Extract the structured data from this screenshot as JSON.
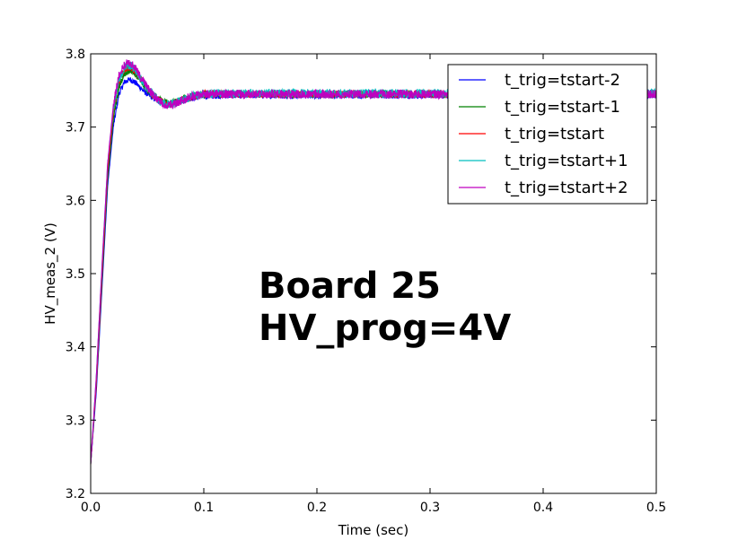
{
  "chart_data": {
    "type": "line",
    "title": "",
    "xlabel": "Time (sec)",
    "ylabel": "HV_meas_2 (V)",
    "xlim": [
      0.0,
      0.5
    ],
    "ylim": [
      3.2,
      3.8
    ],
    "xticks": [
      "0.0",
      "0.1",
      "0.2",
      "0.3",
      "0.4",
      "0.5"
    ],
    "yticks": [
      "3.2",
      "3.3",
      "3.4",
      "3.5",
      "3.6",
      "3.7",
      "3.8"
    ],
    "grid": false,
    "legend_position": "top-right",
    "annotation": [
      "Board 25",
      "HV_prog=4V"
    ],
    "series": [
      {
        "name": "t_trig=tstart-2",
        "color": "#0000ff",
        "noise": 0.004,
        "x": [
          0,
          0.005,
          0.01,
          0.015,
          0.02,
          0.025,
          0.03,
          0.035,
          0.04,
          0.045,
          0.05,
          0.055,
          0.06,
          0.065,
          0.07,
          0.075,
          0.08,
          0.09,
          0.1,
          0.12,
          0.15,
          0.2,
          0.3,
          0.4,
          0.5
        ],
        "y": [
          3.24,
          3.34,
          3.48,
          3.62,
          3.7,
          3.745,
          3.762,
          3.765,
          3.76,
          3.752,
          3.745,
          3.74,
          3.736,
          3.733,
          3.732,
          3.733,
          3.736,
          3.74,
          3.742,
          3.743,
          3.743,
          3.743,
          3.743,
          3.743,
          3.743
        ]
      },
      {
        "name": "t_trig=tstart-1",
        "color": "#008000",
        "noise": 0.005,
        "x": [
          0,
          0.005,
          0.01,
          0.015,
          0.02,
          0.025,
          0.03,
          0.035,
          0.04,
          0.045,
          0.05,
          0.055,
          0.06,
          0.065,
          0.07,
          0.075,
          0.08,
          0.09,
          0.1,
          0.12,
          0.15,
          0.2,
          0.3,
          0.4,
          0.5
        ],
        "y": [
          3.24,
          3.35,
          3.49,
          3.63,
          3.71,
          3.755,
          3.774,
          3.778,
          3.772,
          3.762,
          3.752,
          3.744,
          3.738,
          3.734,
          3.732,
          3.734,
          3.737,
          3.742,
          3.745,
          3.745,
          3.745,
          3.745,
          3.745,
          3.745,
          3.745
        ]
      },
      {
        "name": "t_trig=tstart",
        "color": "#ff0000",
        "noise": 0.005,
        "x": [
          0,
          0.005,
          0.01,
          0.015,
          0.02,
          0.025,
          0.03,
          0.035,
          0.04,
          0.045,
          0.05,
          0.055,
          0.06,
          0.065,
          0.07,
          0.075,
          0.08,
          0.09,
          0.1,
          0.12,
          0.15,
          0.2,
          0.3,
          0.4,
          0.5
        ],
        "y": [
          3.24,
          3.35,
          3.5,
          3.64,
          3.72,
          3.762,
          3.78,
          3.782,
          3.775,
          3.764,
          3.753,
          3.744,
          3.737,
          3.733,
          3.731,
          3.733,
          3.737,
          3.742,
          3.745,
          3.745,
          3.745,
          3.745,
          3.745,
          3.745,
          3.745
        ]
      },
      {
        "name": "t_trig=tstart+1",
        "color": "#00bfbf",
        "noise": 0.006,
        "x": [
          0,
          0.005,
          0.01,
          0.015,
          0.02,
          0.025,
          0.03,
          0.035,
          0.04,
          0.045,
          0.05,
          0.055,
          0.06,
          0.065,
          0.07,
          0.075,
          0.08,
          0.09,
          0.1,
          0.12,
          0.15,
          0.2,
          0.3,
          0.4,
          0.5
        ],
        "y": [
          3.24,
          3.36,
          3.51,
          3.65,
          3.725,
          3.766,
          3.783,
          3.785,
          3.777,
          3.765,
          3.753,
          3.744,
          3.737,
          3.732,
          3.731,
          3.733,
          3.737,
          3.742,
          3.746,
          3.746,
          3.746,
          3.746,
          3.746,
          3.746,
          3.746
        ]
      },
      {
        "name": "t_trig=tstart+2",
        "color": "#bf00bf",
        "noise": 0.006,
        "x": [
          0,
          0.005,
          0.01,
          0.015,
          0.02,
          0.025,
          0.03,
          0.035,
          0.04,
          0.045,
          0.05,
          0.055,
          0.06,
          0.065,
          0.07,
          0.075,
          0.08,
          0.09,
          0.1,
          0.12,
          0.15,
          0.2,
          0.3,
          0.4,
          0.5
        ],
        "y": [
          3.24,
          3.36,
          3.51,
          3.65,
          3.73,
          3.77,
          3.786,
          3.787,
          3.779,
          3.766,
          3.754,
          3.744,
          3.736,
          3.731,
          3.73,
          3.732,
          3.736,
          3.742,
          3.745,
          3.745,
          3.745,
          3.745,
          3.745,
          3.745,
          3.745
        ]
      }
    ]
  }
}
